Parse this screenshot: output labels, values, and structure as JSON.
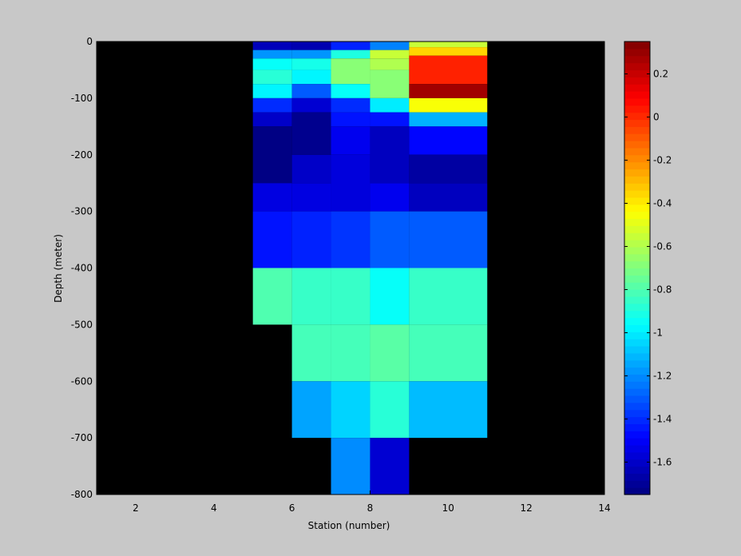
{
  "chart_data": {
    "type": "heatmap",
    "title": "",
    "xlabel": "Station (number)",
    "ylabel": "Depth (meter)",
    "xlim": [
      1,
      14
    ],
    "ylim": [
      -800,
      0
    ],
    "xticks": [
      2,
      4,
      6,
      8,
      10,
      12,
      14
    ],
    "yticks": [
      0,
      -100,
      -200,
      -300,
      -400,
      -500,
      -600,
      -700,
      -800
    ],
    "colorbar": {
      "colormap": "jet",
      "clim": [
        -1.75,
        0.35
      ],
      "ticks": [
        0.2,
        0,
        -0.2,
        -0.4,
        -0.6,
        -0.8,
        -1,
        -1.2,
        -1.4,
        -1.6
      ]
    },
    "background_color": "#000000",
    "cells": [
      {
        "x0": 5,
        "x1": 6,
        "y0": 0,
        "y1": -15,
        "value": -1.63
      },
      {
        "x0": 5,
        "x1": 6,
        "y0": -15,
        "y1": -30,
        "value": -1.18
      },
      {
        "x0": 5,
        "x1": 6,
        "y0": -30,
        "y1": -50,
        "value": -0.95
      },
      {
        "x0": 5,
        "x1": 6,
        "y0": -50,
        "y1": -75,
        "value": -0.88
      },
      {
        "x0": 5,
        "x1": 6,
        "y0": -75,
        "y1": -100,
        "value": -0.98
      },
      {
        "x0": 5,
        "x1": 6,
        "y0": -100,
        "y1": -125,
        "value": -1.4
      },
      {
        "x0": 5,
        "x1": 6,
        "y0": -125,
        "y1": -150,
        "value": -1.6
      },
      {
        "x0": 5,
        "x1": 6,
        "y0": -150,
        "y1": -250,
        "value": -1.74
      },
      {
        "x0": 5,
        "x1": 6,
        "y0": -250,
        "y1": -300,
        "value": -1.55
      },
      {
        "x0": 5,
        "x1": 6,
        "y0": -300,
        "y1": -400,
        "value": -1.45
      },
      {
        "x0": 5,
        "x1": 6,
        "y0": -400,
        "y1": -500,
        "value": -0.8
      },
      {
        "x0": 6,
        "x1": 7,
        "y0": 0,
        "y1": -15,
        "value": -1.65
      },
      {
        "x0": 6,
        "x1": 7,
        "y0": -15,
        "y1": -30,
        "value": -1.18
      },
      {
        "x0": 6,
        "x1": 7,
        "y0": -30,
        "y1": -50,
        "value": -0.92
      },
      {
        "x0": 6,
        "x1": 7,
        "y0": -50,
        "y1": -75,
        "value": -0.98
      },
      {
        "x0": 6,
        "x1": 7,
        "y0": -75,
        "y1": -100,
        "value": -1.3
      },
      {
        "x0": 6,
        "x1": 7,
        "y0": -100,
        "y1": -125,
        "value": -1.58
      },
      {
        "x0": 6,
        "x1": 7,
        "y0": -125,
        "y1": -200,
        "value": -1.72
      },
      {
        "x0": 6,
        "x1": 7,
        "y0": -200,
        "y1": -250,
        "value": -1.6
      },
      {
        "x0": 6,
        "x1": 7,
        "y0": -250,
        "y1": -300,
        "value": -1.55
      },
      {
        "x0": 6,
        "x1": 7,
        "y0": -300,
        "y1": -400,
        "value": -1.42
      },
      {
        "x0": 6,
        "x1": 7,
        "y0": -400,
        "y1": -500,
        "value": -0.85
      },
      {
        "x0": 6,
        "x1": 7,
        "y0": -500,
        "y1": -600,
        "value": -0.82
      },
      {
        "x0": 6,
        "x1": 7,
        "y0": -600,
        "y1": -700,
        "value": -1.15
      },
      {
        "x0": 7,
        "x1": 8,
        "y0": 0,
        "y1": -15,
        "value": -1.42
      },
      {
        "x0": 7,
        "x1": 8,
        "y0": -15,
        "y1": -30,
        "value": -0.9
      },
      {
        "x0": 7,
        "x1": 8,
        "y0": -30,
        "y1": -75,
        "value": -0.68
      },
      {
        "x0": 7,
        "x1": 8,
        "y0": -75,
        "y1": -100,
        "value": -0.95
      },
      {
        "x0": 7,
        "x1": 8,
        "y0": -100,
        "y1": -125,
        "value": -1.4
      },
      {
        "x0": 7,
        "x1": 8,
        "y0": -125,
        "y1": -150,
        "value": -1.45
      },
      {
        "x0": 7,
        "x1": 8,
        "y0": -150,
        "y1": -200,
        "value": -1.52
      },
      {
        "x0": 7,
        "x1": 8,
        "y0": -200,
        "y1": -300,
        "value": -1.56
      },
      {
        "x0": 7,
        "x1": 8,
        "y0": -300,
        "y1": -400,
        "value": -1.38
      },
      {
        "x0": 7,
        "x1": 8,
        "y0": -400,
        "y1": -500,
        "value": -0.85
      },
      {
        "x0": 7,
        "x1": 8,
        "y0": -500,
        "y1": -600,
        "value": -0.82
      },
      {
        "x0": 7,
        "x1": 8,
        "y0": -600,
        "y1": -700,
        "value": -1.05
      },
      {
        "x0": 7,
        "x1": 8,
        "y0": -700,
        "y1": -800,
        "value": -1.2
      },
      {
        "x0": 8,
        "x1": 9,
        "y0": 0,
        "y1": -15,
        "value": -1.22
      },
      {
        "x0": 8,
        "x1": 9,
        "y0": -15,
        "y1": -30,
        "value": -0.55
      },
      {
        "x0": 8,
        "x1": 9,
        "y0": -30,
        "y1": -50,
        "value": -0.6
      },
      {
        "x0": 8,
        "x1": 9,
        "y0": -50,
        "y1": -100,
        "value": -0.68
      },
      {
        "x0": 8,
        "x1": 9,
        "y0": -100,
        "y1": -125,
        "value": -1.0
      },
      {
        "x0": 8,
        "x1": 9,
        "y0": -125,
        "y1": -150,
        "value": -1.45
      },
      {
        "x0": 8,
        "x1": 9,
        "y0": -150,
        "y1": -250,
        "value": -1.62
      },
      {
        "x0": 8,
        "x1": 9,
        "y0": -250,
        "y1": -300,
        "value": -1.52
      },
      {
        "x0": 8,
        "x1": 9,
        "y0": -300,
        "y1": -400,
        "value": -1.3
      },
      {
        "x0": 8,
        "x1": 9,
        "y0": -400,
        "y1": -500,
        "value": -0.95
      },
      {
        "x0": 8,
        "x1": 9,
        "y0": -500,
        "y1": -600,
        "value": -0.78
      },
      {
        "x0": 8,
        "x1": 9,
        "y0": -600,
        "y1": -700,
        "value": -0.88
      },
      {
        "x0": 8,
        "x1": 9,
        "y0": -700,
        "y1": -800,
        "value": -1.58
      },
      {
        "x0": 9,
        "x1": 11,
        "y0": 0,
        "y1": -10,
        "value": -0.55
      },
      {
        "x0": 9,
        "x1": 11,
        "y0": -10,
        "y1": -25,
        "value": -0.35
      },
      {
        "x0": 9,
        "x1": 11,
        "y0": -25,
        "y1": -75,
        "value": 0.02
      },
      {
        "x0": 9,
        "x1": 11,
        "y0": -75,
        "y1": -100,
        "value": 0.28
      },
      {
        "x0": 9,
        "x1": 11,
        "y0": -100,
        "y1": -125,
        "value": -0.45
      },
      {
        "x0": 9,
        "x1": 11,
        "y0": -125,
        "y1": -150,
        "value": -1.12
      },
      {
        "x0": 9,
        "x1": 11,
        "y0": -150,
        "y1": -200,
        "value": -1.48
      },
      {
        "x0": 9,
        "x1": 11,
        "y0": -200,
        "y1": -250,
        "value": -1.68
      },
      {
        "x0": 9,
        "x1": 11,
        "y0": -250,
        "y1": -300,
        "value": -1.62
      },
      {
        "x0": 9,
        "x1": 11,
        "y0": -300,
        "y1": -400,
        "value": -1.3
      },
      {
        "x0": 9,
        "x1": 11,
        "y0": -400,
        "y1": -500,
        "value": -0.85
      },
      {
        "x0": 9,
        "x1": 11,
        "y0": -500,
        "y1": -600,
        "value": -0.82
      },
      {
        "x0": 9,
        "x1": 11,
        "y0": -600,
        "y1": -700,
        "value": -1.1
      }
    ]
  }
}
